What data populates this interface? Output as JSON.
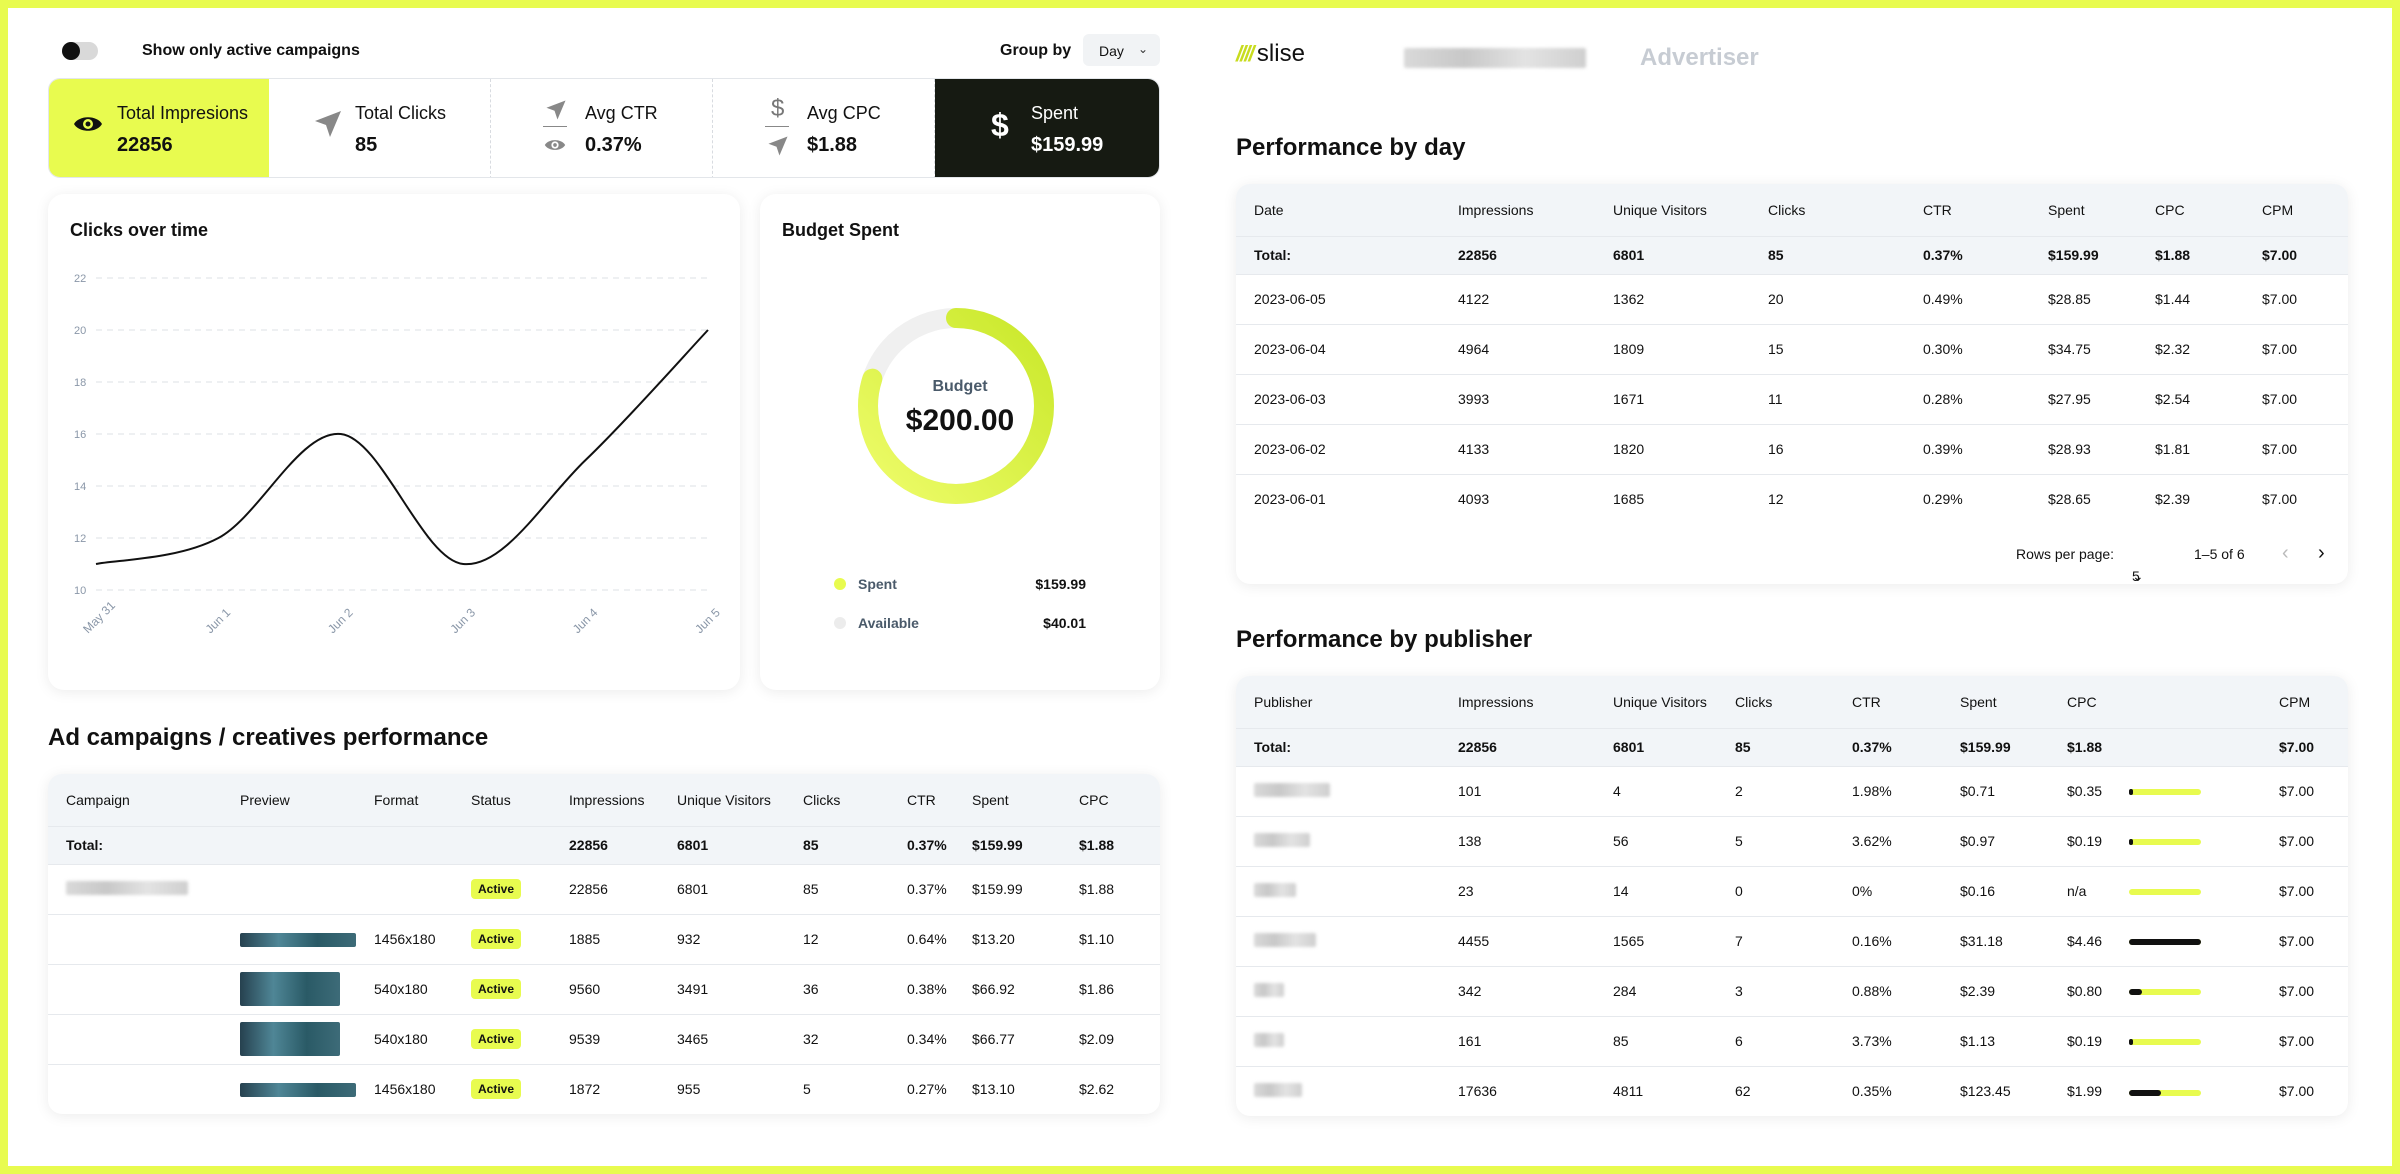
{
  "filter": {
    "toggle_label": "Show only active campaigns",
    "group_by_label": "Group by",
    "group_by_value": "Day"
  },
  "stats": [
    {
      "label": "Total Impresions",
      "value": "22856"
    },
    {
      "label": "Total Clicks",
      "value": "85"
    },
    {
      "label": "Avg CTR",
      "value": "0.37%"
    },
    {
      "label": "Avg CPC",
      "value": "$1.88"
    },
    {
      "label": "Spent",
      "value": "$159.99"
    }
  ],
  "clicks_chart": {
    "title": "Clicks over time",
    "chart_data": {
      "type": "line",
      "x": [
        "May 31",
        "Jun 1",
        "Jun 2",
        "Jun 3",
        "Jun 4",
        "Jun 5"
      ],
      "values": [
        11,
        12,
        16,
        11,
        15,
        20
      ],
      "y_ticks": [
        10,
        12,
        14,
        16,
        18,
        20,
        22
      ],
      "ylim": [
        10,
        22
      ],
      "grid": true
    }
  },
  "budget": {
    "title": "Budget Spent",
    "center_label": "Budget",
    "center_value": "$200.00",
    "spent_fraction": 0.8,
    "legend": [
      {
        "label": "Spent",
        "value": "$159.99"
      },
      {
        "label": "Available",
        "value": "$40.01"
      }
    ]
  },
  "campaigns": {
    "title": "Ad campaigns / creatives performance",
    "headers": [
      "Campaign",
      "Preview",
      "Format",
      "Status",
      "Impressions",
      "Unique Visitors",
      "Clicks",
      "CTR",
      "Spent",
      "CPC"
    ],
    "total": [
      "Total:",
      "",
      "",
      "",
      "22856",
      "6801",
      "85",
      "0.37%",
      "$159.99",
      "$1.88"
    ],
    "rows": [
      {
        "format": "",
        "status": "Active",
        "impressions": "22856",
        "visitors": "6801",
        "clicks": "85",
        "ctr": "0.37%",
        "spent": "$159.99",
        "cpc": "$1.88"
      },
      {
        "format": "1456x180",
        "status": "Active",
        "impressions": "1885",
        "visitors": "932",
        "clicks": "12",
        "ctr": "0.64%",
        "spent": "$13.20",
        "cpc": "$1.10"
      },
      {
        "format": "540x180",
        "status": "Active",
        "impressions": "9560",
        "visitors": "3491",
        "clicks": "36",
        "ctr": "0.38%",
        "spent": "$66.92",
        "cpc": "$1.86"
      },
      {
        "format": "540x180",
        "status": "Active",
        "impressions": "9539",
        "visitors": "3465",
        "clicks": "32",
        "ctr": "0.34%",
        "spent": "$66.77",
        "cpc": "$2.09"
      },
      {
        "format": "1456x180",
        "status": "Active",
        "impressions": "1872",
        "visitors": "955",
        "clicks": "5",
        "ctr": "0.27%",
        "spent": "$13.10",
        "cpc": "$2.62"
      }
    ]
  },
  "header": {
    "logo": "slise",
    "role": "Advertiser"
  },
  "by_day": {
    "title": "Performance by day",
    "headers": [
      "Date",
      "Impressions",
      "Unique Visitors",
      "Clicks",
      "CTR",
      "Spent",
      "CPC",
      "CPM"
    ],
    "total": [
      "Total:",
      "22856",
      "6801",
      "85",
      "0.37%",
      "$159.99",
      "$1.88",
      "$7.00"
    ],
    "rows": [
      [
        "2023-06-05",
        "4122",
        "1362",
        "20",
        "0.49%",
        "$28.85",
        "$1.44",
        "$7.00"
      ],
      [
        "2023-06-04",
        "4964",
        "1809",
        "15",
        "0.30%",
        "$34.75",
        "$2.32",
        "$7.00"
      ],
      [
        "2023-06-03",
        "3993",
        "1671",
        "11",
        "0.28%",
        "$27.95",
        "$2.54",
        "$7.00"
      ],
      [
        "2023-06-02",
        "4133",
        "1820",
        "16",
        "0.39%",
        "$28.93",
        "$1.81",
        "$7.00"
      ],
      [
        "2023-06-01",
        "4093",
        "1685",
        "12",
        "0.29%",
        "$28.65",
        "$2.39",
        "$7.00"
      ]
    ],
    "pager": {
      "rows_label": "Rows per page:",
      "rows_value": "5",
      "range": "1–5 of 6"
    }
  },
  "by_publisher": {
    "title": "Performance by publisher",
    "headers": [
      "Publisher",
      "Impressions",
      "Unique Visitors",
      "Clicks",
      "CTR",
      "Spent",
      "CPC",
      "",
      "CPM"
    ],
    "total": [
      "Total:",
      "22856",
      "6801",
      "85",
      "0.37%",
      "$159.99",
      "$1.88",
      "",
      "$7.00"
    ],
    "rows": [
      {
        "impressions": "101",
        "visitors": "4",
        "clicks": "2",
        "ctr": "1.98%",
        "spent": "$0.71",
        "cpc": "$0.35",
        "share": 0.06,
        "cpm": "$7.00"
      },
      {
        "impressions": "138",
        "visitors": "56",
        "clicks": "5",
        "ctr": "3.62%",
        "spent": "$0.97",
        "cpc": "$0.19",
        "share": 0.04,
        "cpm": "$7.00"
      },
      {
        "impressions": "23",
        "visitors": "14",
        "clicks": "0",
        "ctr": "0%",
        "spent": "$0.16",
        "cpc": "n/a",
        "share": 0.0,
        "cpm": "$7.00"
      },
      {
        "impressions": "4455",
        "visitors": "1565",
        "clicks": "7",
        "ctr": "0.16%",
        "spent": "$31.18",
        "cpc": "$4.46",
        "share": 1.0,
        "cpm": "$7.00"
      },
      {
        "impressions": "342",
        "visitors": "284",
        "clicks": "3",
        "ctr": "0.88%",
        "spent": "$2.39",
        "cpc": "$0.80",
        "share": 0.18,
        "cpm": "$7.00"
      },
      {
        "impressions": "161",
        "visitors": "85",
        "clicks": "6",
        "ctr": "3.73%",
        "spent": "$1.13",
        "cpc": "$0.19",
        "share": 0.04,
        "cpm": "$7.00"
      },
      {
        "impressions": "17636",
        "visitors": "4811",
        "clicks": "62",
        "ctr": "0.35%",
        "spent": "$123.45",
        "cpc": "$1.99",
        "share": 0.45,
        "cpm": "$7.00"
      }
    ]
  },
  "colors": {
    "accent": "#e8fb4f",
    "dark": "#161a12",
    "line": "#111111"
  }
}
